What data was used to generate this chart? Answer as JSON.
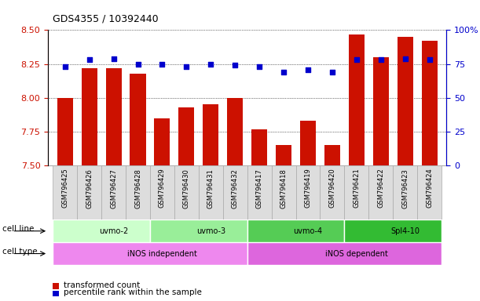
{
  "title": "GDS4355 / 10392440",
  "samples": [
    "GSM796425",
    "GSM796426",
    "GSM796427",
    "GSM796428",
    "GSM796429",
    "GSM796430",
    "GSM796431",
    "GSM796432",
    "GSM796417",
    "GSM796418",
    "GSM796419",
    "GSM796420",
    "GSM796421",
    "GSM796422",
    "GSM796423",
    "GSM796424"
  ],
  "transformed_count": [
    8.0,
    8.22,
    8.22,
    8.18,
    7.85,
    7.93,
    7.95,
    8.0,
    7.77,
    7.65,
    7.83,
    7.65,
    8.47,
    8.3,
    8.45,
    8.42
  ],
  "percentile_rank": [
    73,
    78,
    79,
    75,
    75,
    73,
    75,
    74,
    73,
    69,
    71,
    69,
    78,
    78,
    79,
    78
  ],
  "ylim_left": [
    7.5,
    8.5
  ],
  "ylim_right": [
    0,
    100
  ],
  "yticks_left": [
    7.5,
    7.75,
    8.0,
    8.25,
    8.5
  ],
  "yticks_right": [
    0,
    25,
    50,
    75,
    100
  ],
  "bar_color": "#cc1100",
  "dot_color": "#0000cc",
  "cell_lines": [
    {
      "label": "uvmo-2",
      "start": 0,
      "end": 4,
      "color": "#ccffcc"
    },
    {
      "label": "uvmo-3",
      "start": 4,
      "end": 8,
      "color": "#99ee99"
    },
    {
      "label": "uvmo-4",
      "start": 8,
      "end": 12,
      "color": "#55cc55"
    },
    {
      "label": "Spl4-10",
      "start": 12,
      "end": 16,
      "color": "#33bb33"
    }
  ],
  "cell_types": [
    {
      "label": "iNOS independent",
      "start": 0,
      "end": 8,
      "color": "#ee88ee"
    },
    {
      "label": "iNOS dependent",
      "start": 8,
      "end": 16,
      "color": "#dd66dd"
    }
  ],
  "cell_line_label": "cell line",
  "cell_type_label": "cell type",
  "legend_items": [
    {
      "color": "#cc1100",
      "label": "transformed count"
    },
    {
      "color": "#0000cc",
      "label": "percentile rank within the sample"
    }
  ],
  "bar_width": 0.65,
  "ybase": 7.5,
  "sample_box_color": "#dddddd",
  "sample_box_edge": "#aaaaaa"
}
